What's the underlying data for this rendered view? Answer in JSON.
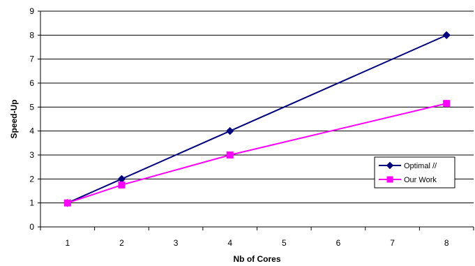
{
  "chart_data": {
    "type": "line",
    "xlabel": "Nb of Cores",
    "ylabel": "Speed-Up",
    "x_categories": [
      "1",
      "2",
      "3",
      "4",
      "5",
      "6",
      "7",
      "8"
    ],
    "ylim": [
      0,
      9
    ],
    "yticks": [
      "0",
      "1",
      "2",
      "3",
      "4",
      "5",
      "6",
      "7",
      "8",
      "9"
    ],
    "grid": "horizontal",
    "legend_position": "right",
    "series": [
      {
        "name": "Optimal //",
        "color": "#000080",
        "marker": "diamond",
        "x": [
          1,
          2,
          4,
          8
        ],
        "y": [
          1,
          2,
          4,
          8
        ]
      },
      {
        "name": "Our Work",
        "color": "#ff00ff",
        "marker": "square",
        "x": [
          1,
          2,
          4,
          8
        ],
        "y": [
          1,
          1.75,
          3,
          5.15
        ]
      }
    ]
  }
}
